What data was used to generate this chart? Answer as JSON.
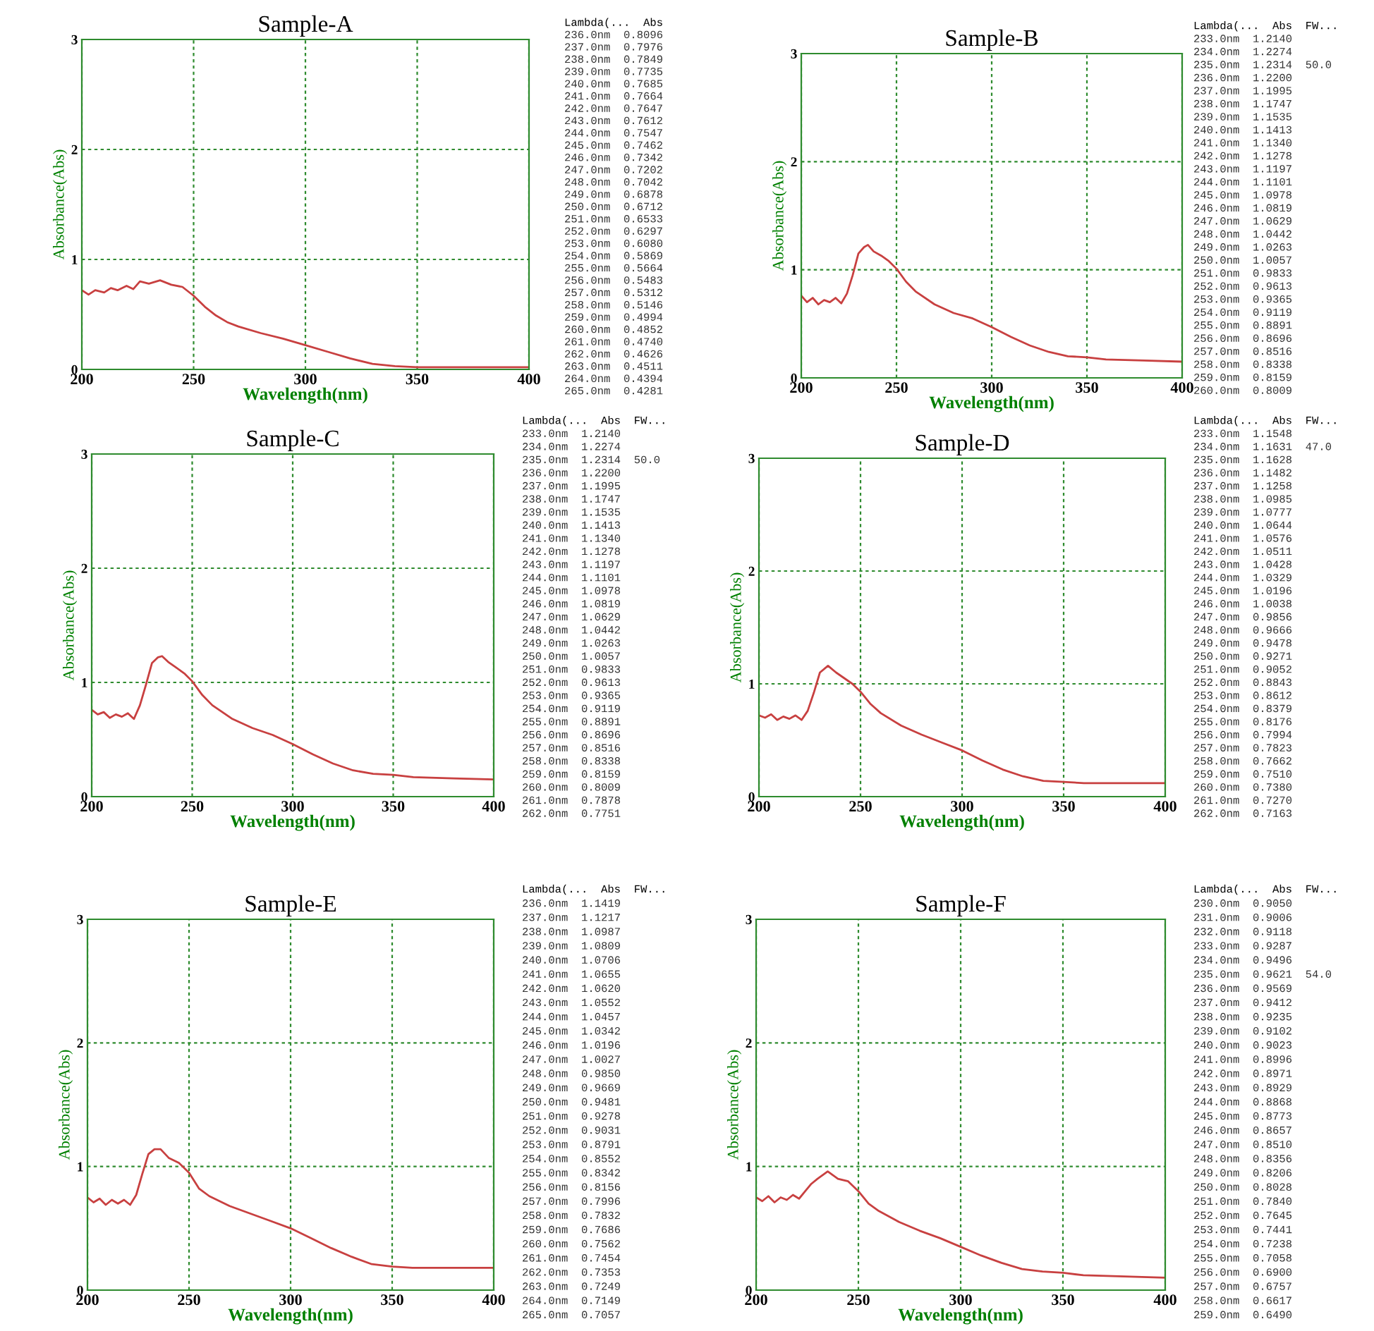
{
  "chart_data": [
    {
      "type": "line",
      "title": "Sample-A",
      "xlabel": "Wavelength(nm)",
      "ylabel": "Absorbance(Abs)",
      "xlim": [
        200,
        400
      ],
      "ylim": [
        0,
        3
      ],
      "xticks": [
        200,
        250,
        300,
        350,
        400
      ],
      "yticks": [
        0,
        1,
        2,
        3
      ],
      "grid": true,
      "x": [
        200,
        203,
        206,
        210,
        213,
        216,
        220,
        223,
        226,
        230,
        235,
        240,
        245,
        250,
        255,
        260,
        265,
        270,
        280,
        290,
        300,
        310,
        320,
        330,
        340,
        350,
        370,
        400
      ],
      "series": [
        {
          "color": "#c84040",
          "values": [
            0.72,
            0.68,
            0.72,
            0.7,
            0.74,
            0.72,
            0.76,
            0.73,
            0.8,
            0.78,
            0.81,
            0.77,
            0.75,
            0.67,
            0.57,
            0.49,
            0.43,
            0.39,
            0.33,
            0.28,
            0.22,
            0.16,
            0.1,
            0.05,
            0.03,
            0.02,
            0.02,
            0.02
          ]
        }
      ],
      "annotations": [
        "Lambda(...  Abs",
        "236.0nm  0.8096",
        "237.0nm  0.7976",
        "238.0nm  0.7849",
        "239.0nm  0.7735",
        "240.0nm  0.7685",
        "241.0nm  0.7664",
        "242.0nm  0.7647",
        "243.0nm  0.7612",
        "244.0nm  0.7547",
        "245.0nm  0.7462",
        "246.0nm  0.7342",
        "247.0nm  0.7202",
        "248.0nm  0.7042",
        "249.0nm  0.6878",
        "250.0nm  0.6712",
        "251.0nm  0.6533",
        "252.0nm  0.6297",
        "253.0nm  0.6080",
        "254.0nm  0.5869",
        "255.0nm  0.5664",
        "256.0nm  0.5483",
        "257.0nm  0.5312",
        "258.0nm  0.5146",
        "259.0nm  0.4994",
        "260.0nm  0.4852",
        "261.0nm  0.4740",
        "262.0nm  0.4626",
        "263.0nm  0.4511",
        "264.0nm  0.4394",
        "265.0nm  0.4281"
      ]
    },
    {
      "type": "line",
      "title": "Sample-B",
      "xlabel": "Wavelength(nm)",
      "ylabel": "Absorbance(Abs)",
      "xlim": [
        200,
        400
      ],
      "ylim": [
        0,
        3
      ],
      "xticks": [
        200,
        250,
        300,
        350,
        400
      ],
      "yticks": [
        0,
        1,
        2,
        3
      ],
      "grid": true,
      "x": [
        200,
        203,
        206,
        209,
        212,
        215,
        218,
        221,
        224,
        227,
        230,
        233,
        235,
        238,
        242,
        246,
        250,
        255,
        260,
        270,
        280,
        290,
        300,
        310,
        320,
        330,
        340,
        350,
        360,
        380,
        400
      ],
      "series": [
        {
          "color": "#c84040",
          "values": [
            0.76,
            0.7,
            0.74,
            0.68,
            0.72,
            0.7,
            0.74,
            0.69,
            0.78,
            0.95,
            1.15,
            1.21,
            1.23,
            1.17,
            1.13,
            1.08,
            1.01,
            0.89,
            0.8,
            0.68,
            0.6,
            0.55,
            0.47,
            0.38,
            0.3,
            0.24,
            0.2,
            0.19,
            0.17,
            0.16,
            0.15
          ]
        }
      ],
      "annotations": [
        "Lambda(...  Abs  FW...",
        "233.0nm  1.2140",
        "234.0nm  1.2274",
        "235.0nm  1.2314  50.0",
        "236.0nm  1.2200",
        "237.0nm  1.1995",
        "238.0nm  1.1747",
        "239.0nm  1.1535",
        "240.0nm  1.1413",
        "241.0nm  1.1340",
        "242.0nm  1.1278",
        "243.0nm  1.1197",
        "244.0nm  1.1101",
        "245.0nm  1.0978",
        "246.0nm  1.0819",
        "247.0nm  1.0629",
        "248.0nm  1.0442",
        "249.0nm  1.0263",
        "250.0nm  1.0057",
        "251.0nm  0.9833",
        "252.0nm  0.9613",
        "253.0nm  0.9365",
        "254.0nm  0.9119",
        "255.0nm  0.8891",
        "256.0nm  0.8696",
        "257.0nm  0.8516",
        "258.0nm  0.8338",
        "259.0nm  0.8159",
        "260.0nm  0.8009"
      ]
    },
    {
      "type": "line",
      "title": "Sample-C",
      "xlabel": "Wavelength(nm)",
      "ylabel": "Absorbance(Abs)",
      "xlim": [
        200,
        400
      ],
      "ylim": [
        0,
        3
      ],
      "xticks": [
        200,
        250,
        300,
        350,
        400
      ],
      "yticks": [
        0,
        1,
        2,
        3
      ],
      "grid": true,
      "x": [
        200,
        203,
        206,
        209,
        212,
        215,
        218,
        221,
        224,
        227,
        230,
        233,
        235,
        238,
        242,
        246,
        250,
        255,
        260,
        270,
        280,
        290,
        300,
        310,
        320,
        330,
        340,
        350,
        360,
        380,
        400
      ],
      "series": [
        {
          "color": "#c84040",
          "values": [
            0.76,
            0.72,
            0.74,
            0.69,
            0.72,
            0.7,
            0.73,
            0.68,
            0.8,
            0.98,
            1.17,
            1.22,
            1.23,
            1.18,
            1.13,
            1.08,
            1.01,
            0.89,
            0.8,
            0.68,
            0.6,
            0.54,
            0.46,
            0.37,
            0.29,
            0.23,
            0.2,
            0.19,
            0.17,
            0.16,
            0.15
          ]
        }
      ],
      "annotations": [
        "Lambda(...  Abs  FW...",
        "233.0nm  1.2140",
        "234.0nm  1.2274",
        "235.0nm  1.2314  50.0",
        "236.0nm  1.2200",
        "237.0nm  1.1995",
        "238.0nm  1.1747",
        "239.0nm  1.1535",
        "240.0nm  1.1413",
        "241.0nm  1.1340",
        "242.0nm  1.1278",
        "243.0nm  1.1197",
        "244.0nm  1.1101",
        "245.0nm  1.0978",
        "246.0nm  1.0819",
        "247.0nm  1.0629",
        "248.0nm  1.0442",
        "249.0nm  1.0263",
        "250.0nm  1.0057",
        "251.0nm  0.9833",
        "252.0nm  0.9613",
        "253.0nm  0.9365",
        "254.0nm  0.9119",
        "255.0nm  0.8891",
        "256.0nm  0.8696",
        "257.0nm  0.8516",
        "258.0nm  0.8338",
        "259.0nm  0.8159",
        "260.0nm  0.8009",
        "261.0nm  0.7878",
        "262.0nm  0.7751"
      ]
    },
    {
      "type": "line",
      "title": "Sample-D",
      "xlabel": "Wavelength(nm)",
      "ylabel": "Absorbance(Abs)",
      "xlim": [
        200,
        400
      ],
      "ylim": [
        0,
        3
      ],
      "xticks": [
        200,
        250,
        300,
        350,
        400
      ],
      "yticks": [
        0,
        1,
        2,
        3
      ],
      "grid": true,
      "x": [
        200,
        203,
        206,
        209,
        212,
        215,
        218,
        221,
        224,
        227,
        230,
        234,
        238,
        242,
        246,
        250,
        255,
        260,
        270,
        280,
        290,
        300,
        310,
        320,
        330,
        340,
        350,
        360,
        380,
        400
      ],
      "series": [
        {
          "color": "#c84040",
          "values": [
            0.72,
            0.7,
            0.73,
            0.68,
            0.71,
            0.69,
            0.72,
            0.68,
            0.76,
            0.92,
            1.1,
            1.16,
            1.1,
            1.05,
            1.0,
            0.93,
            0.82,
            0.74,
            0.63,
            0.55,
            0.48,
            0.41,
            0.32,
            0.24,
            0.18,
            0.14,
            0.13,
            0.12,
            0.12,
            0.12
          ]
        }
      ],
      "annotations": [
        "Lambda(...  Abs  FW...",
        "233.0nm  1.1548",
        "234.0nm  1.1631  47.0",
        "235.0nm  1.1628",
        "236.0nm  1.1482",
        "237.0nm  1.1258",
        "238.0nm  1.0985",
        "239.0nm  1.0777",
        "240.0nm  1.0644",
        "241.0nm  1.0576",
        "242.0nm  1.0511",
        "243.0nm  1.0428",
        "244.0nm  1.0329",
        "245.0nm  1.0196",
        "246.0nm  1.0038",
        "247.0nm  0.9856",
        "248.0nm  0.9666",
        "249.0nm  0.9478",
        "250.0nm  0.9271",
        "251.0nm  0.9052",
        "252.0nm  0.8843",
        "253.0nm  0.8612",
        "254.0nm  0.8379",
        "255.0nm  0.8176",
        "256.0nm  0.7994",
        "257.0nm  0.7823",
        "258.0nm  0.7662",
        "259.0nm  0.7510",
        "260.0nm  0.7380",
        "261.0nm  0.7270",
        "262.0nm  0.7163"
      ]
    },
    {
      "type": "line",
      "title": "Sample-E",
      "xlabel": "Wavelength(nm)",
      "ylabel": "Absorbance(Abs)",
      "xlim": [
        200,
        400
      ],
      "ylim": [
        0,
        3
      ],
      "xticks": [
        200,
        250,
        300,
        350,
        400
      ],
      "yticks": [
        0,
        1,
        2,
        3
      ],
      "grid": true,
      "x": [
        200,
        203,
        206,
        209,
        212,
        215,
        218,
        221,
        224,
        227,
        230,
        233,
        236,
        240,
        245,
        250,
        255,
        260,
        270,
        280,
        290,
        300,
        310,
        320,
        330,
        340,
        350,
        360,
        380,
        400
      ],
      "series": [
        {
          "color": "#c84040",
          "values": [
            0.75,
            0.71,
            0.74,
            0.69,
            0.73,
            0.7,
            0.73,
            0.69,
            0.77,
            0.94,
            1.1,
            1.14,
            1.14,
            1.07,
            1.03,
            0.95,
            0.82,
            0.76,
            0.68,
            0.62,
            0.56,
            0.5,
            0.42,
            0.34,
            0.27,
            0.21,
            0.19,
            0.18,
            0.18,
            0.18
          ]
        }
      ],
      "annotations": [
        "Lambda(...  Abs  FW...",
        "236.0nm  1.1419",
        "237.0nm  1.1217",
        "238.0nm  1.0987",
        "239.0nm  1.0809",
        "240.0nm  1.0706",
        "241.0nm  1.0655",
        "242.0nm  1.0620",
        "243.0nm  1.0552",
        "244.0nm  1.0457",
        "245.0nm  1.0342",
        "246.0nm  1.0196",
        "247.0nm  1.0027",
        "248.0nm  0.9850",
        "249.0nm  0.9669",
        "250.0nm  0.9481",
        "251.0nm  0.9278",
        "252.0nm  0.9031",
        "253.0nm  0.8791",
        "254.0nm  0.8552",
        "255.0nm  0.8342",
        "256.0nm  0.8156",
        "257.0nm  0.7996",
        "258.0nm  0.7832",
        "259.0nm  0.7686",
        "260.0nm  0.7562",
        "261.0nm  0.7454",
        "262.0nm  0.7353",
        "263.0nm  0.7249",
        "264.0nm  0.7149",
        "265.0nm  0.7057"
      ]
    },
    {
      "type": "line",
      "title": "Sample-F",
      "xlabel": "Wavelength(nm)",
      "ylabel": "Absorbance(Abs)",
      "xlim": [
        200,
        400
      ],
      "ylim": [
        0,
        3
      ],
      "xticks": [
        200,
        250,
        300,
        350,
        400
      ],
      "yticks": [
        0,
        1,
        2,
        3
      ],
      "grid": true,
      "x": [
        200,
        203,
        206,
        209,
        212,
        215,
        218,
        221,
        224,
        227,
        230,
        235,
        240,
        245,
        250,
        255,
        260,
        270,
        280,
        290,
        300,
        310,
        320,
        330,
        340,
        350,
        360,
        380,
        400
      ],
      "series": [
        {
          "color": "#c84040",
          "values": [
            0.75,
            0.72,
            0.76,
            0.71,
            0.75,
            0.73,
            0.77,
            0.74,
            0.8,
            0.86,
            0.9,
            0.96,
            0.9,
            0.88,
            0.8,
            0.7,
            0.64,
            0.55,
            0.48,
            0.42,
            0.35,
            0.28,
            0.22,
            0.17,
            0.15,
            0.14,
            0.12,
            0.11,
            0.1
          ]
        }
      ],
      "annotations": [
        "Lambda(...  Abs  FW...",
        "230.0nm  0.9050",
        "231.0nm  0.9006",
        "232.0nm  0.9118",
        "233.0nm  0.9287",
        "234.0nm  0.9496",
        "235.0nm  0.9621  54.0",
        "236.0nm  0.9569",
        "237.0nm  0.9412",
        "238.0nm  0.9235",
        "239.0nm  0.9102",
        "240.0nm  0.9023",
        "241.0nm  0.8996",
        "242.0nm  0.8971",
        "243.0nm  0.8929",
        "244.0nm  0.8868",
        "245.0nm  0.8773",
        "246.0nm  0.8657",
        "247.0nm  0.8510",
        "248.0nm  0.8356",
        "249.0nm  0.8206",
        "250.0nm  0.8028",
        "251.0nm  0.7840",
        "252.0nm  0.7645",
        "253.0nm  0.7441",
        "254.0nm  0.7238",
        "255.0nm  0.7058",
        "256.0nm  0.6900",
        "257.0nm  0.6757",
        "258.0nm  0.6617",
        "259.0nm  0.6490"
      ]
    }
  ]
}
